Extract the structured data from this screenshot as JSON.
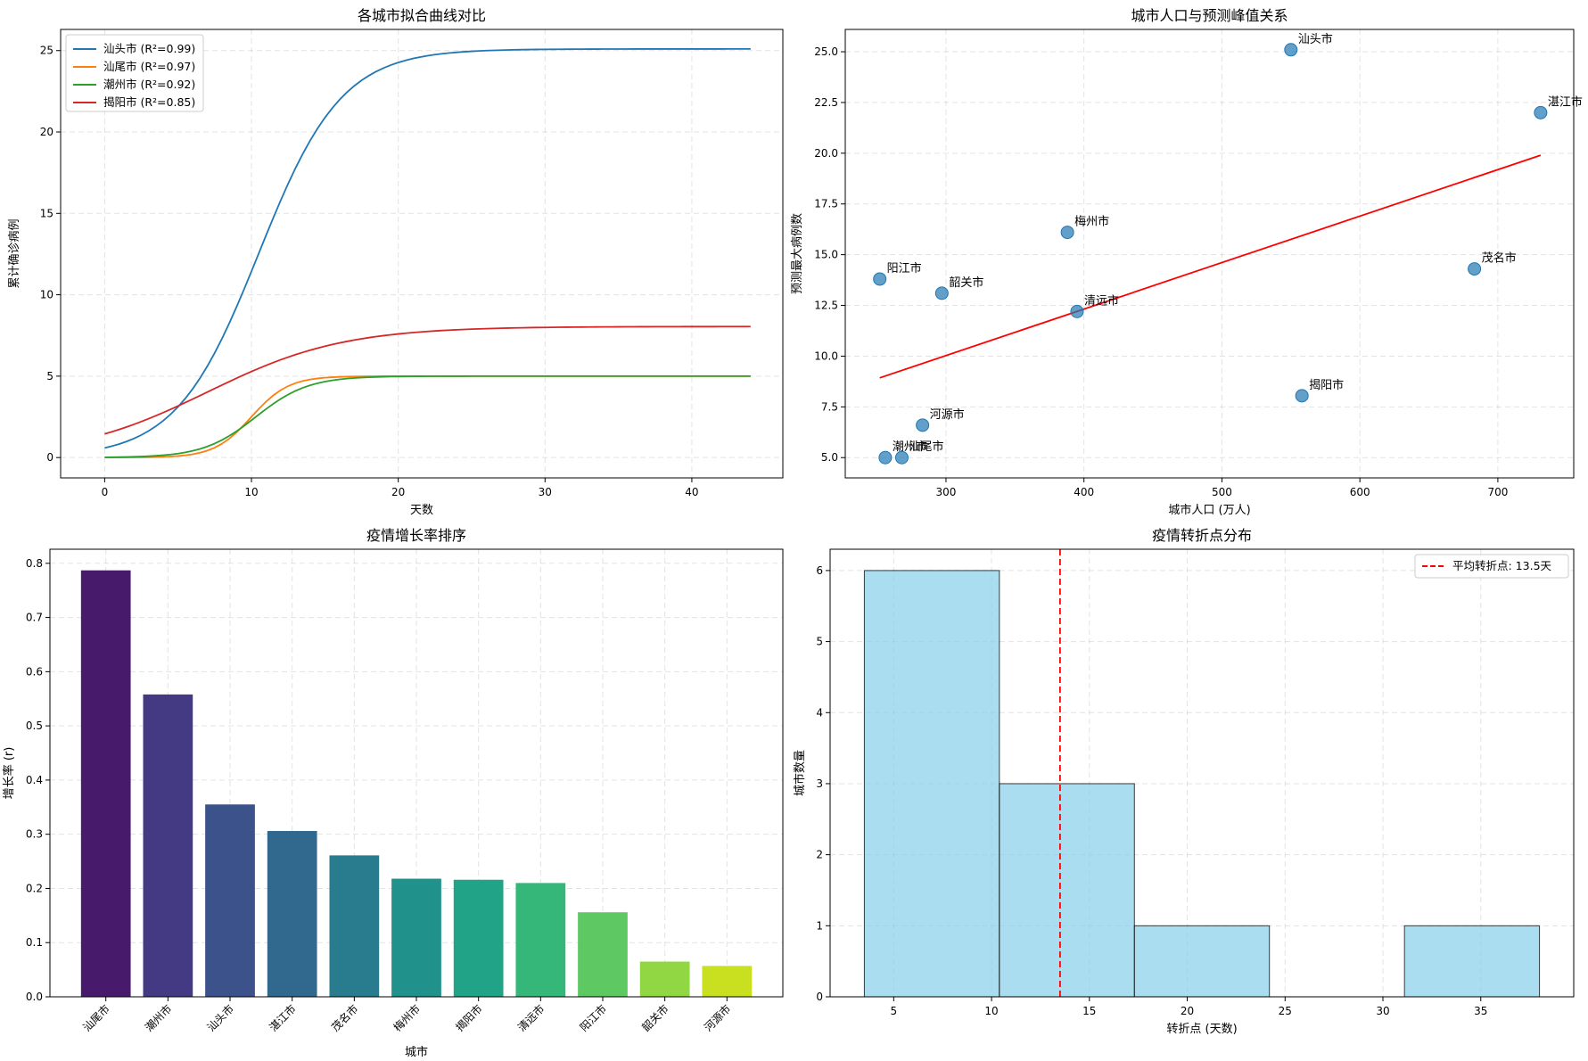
{
  "chart_data": [
    {
      "type": "line",
      "title": "各城市拟合曲线对比",
      "xlabel": "天数",
      "ylabel": "累计确诊病例",
      "xlim": [
        -3,
        46.2
      ],
      "ylim": [
        -1.25,
        26.3
      ],
      "xticks": [
        0,
        10,
        20,
        30,
        40
      ],
      "yticks": [
        0,
        5,
        10,
        15,
        20,
        25
      ],
      "grid": true,
      "legend": "top-left",
      "x_range": [
        0,
        44
      ],
      "series": [
        {
          "name": "汕头市 (R²=0.99)",
          "color": "#1f77b4",
          "K": 25.1,
          "r": 0.355,
          "t0": 10.5
        },
        {
          "name": "汕尾市 (R²=0.97)",
          "color": "#ff7f0e",
          "K": 5.0,
          "r": 0.79,
          "t0": 10.0
        },
        {
          "name": "潮州市 (R²=0.92)",
          "color": "#2ca02c",
          "K": 5.0,
          "r": 0.56,
          "t0": 10.3
        },
        {
          "name": "揭阳市 (R²=0.85)",
          "color": "#d62728",
          "K": 8.05,
          "r": 0.216,
          "t0": 7.0
        }
      ]
    },
    {
      "type": "scatter",
      "title": "城市人口与预测峰值关系",
      "xlabel": "城市人口 (万人)",
      "ylabel": "预测最大病例数",
      "xlim": [
        227,
        755
      ],
      "ylim": [
        4.0,
        26.1
      ],
      "xticks": [
        300,
        400,
        500,
        600,
        700
      ],
      "yticks": [
        5.0,
        7.5,
        10.0,
        12.5,
        15.0,
        17.5,
        20.0,
        22.5,
        25.0
      ],
      "grid": true,
      "point_color": "#1f77b4",
      "points": [
        {
          "label": "汕头市",
          "x": 550,
          "y": 25.1
        },
        {
          "label": "湛江市",
          "x": 731,
          "y": 22.0
        },
        {
          "label": "梅州市",
          "x": 388,
          "y": 16.1
        },
        {
          "label": "茂名市",
          "x": 683,
          "y": 14.3
        },
        {
          "label": "阳江市",
          "x": 252,
          "y": 13.8
        },
        {
          "label": "韶关市",
          "x": 297,
          "y": 13.1
        },
        {
          "label": "清远市",
          "x": 395,
          "y": 12.2
        },
        {
          "label": "揭阳市",
          "x": 558,
          "y": 8.05
        },
        {
          "label": "河源市",
          "x": 283,
          "y": 6.6
        },
        {
          "label": "潮州市",
          "x": 256,
          "y": 5.0
        },
        {
          "label": "汕尾市",
          "x": 268,
          "y": 5.0
        }
      ],
      "fit_line": {
        "color": "#ff0000",
        "x": [
          252,
          731
        ],
        "y": [
          8.93,
          19.9
        ]
      }
    },
    {
      "type": "bar",
      "title": "疫情增长率排序",
      "xlabel": "城市",
      "ylabel": "增长率 (r)",
      "ylim": [
        0,
        0.826
      ],
      "yticks": [
        0.0,
        0.1,
        0.2,
        0.3,
        0.4,
        0.5,
        0.6,
        0.7,
        0.8
      ],
      "grid": true,
      "categories": [
        "汕尾市",
        "潮州市",
        "汕头市",
        "湛江市",
        "茂名市",
        "梅州市",
        "揭阳市",
        "清远市",
        "阳江市",
        "韶关市",
        "河源市"
      ],
      "values": [
        0.787,
        0.558,
        0.355,
        0.306,
        0.261,
        0.218,
        0.216,
        0.21,
        0.156,
        0.065,
        0.057
      ],
      "colors": [
        "#481a6c",
        "#443983",
        "#3b528b",
        "#31688e",
        "#287c8e",
        "#21918c",
        "#20a386",
        "#35b779",
        "#5ec962",
        "#90d743",
        "#c8e020"
      ]
    },
    {
      "type": "histogram",
      "title": "疫情转折点分布",
      "xlabel": "转折点 (天数)",
      "ylabel": "城市数量",
      "xlim": [
        1.75,
        39.75
      ],
      "ylim": [
        0,
        6.3
      ],
      "xticks": [
        5,
        10,
        15,
        20,
        25,
        30,
        35
      ],
      "yticks": [
        0,
        1,
        2,
        3,
        4,
        5,
        6
      ],
      "grid": true,
      "bin_edges": [
        3.5,
        10.4,
        17.3,
        24.2,
        31.1,
        38.0
      ],
      "counts": [
        6,
        3,
        1,
        0,
        1
      ],
      "bar_color": "#87ceeb",
      "mean_line": {
        "value": 13.5,
        "color": "#ff0000",
        "label": "平均转折点: 13.5天"
      },
      "legend": "top-right"
    }
  ]
}
